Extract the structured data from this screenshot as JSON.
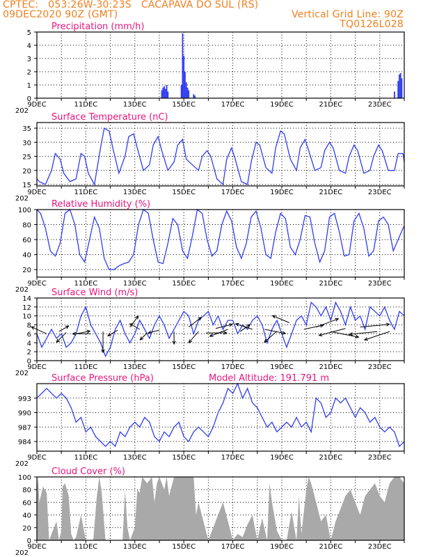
{
  "header": {
    "line1": "CPTEC:   053:26W-30:23S   CACAPAVA DO SUL (RS)",
    "line2_left": "09DEC2020 90Z (GMT)",
    "line2_right": "Vertical Grid Line: 90Z",
    "line3_right": "TQ0126L028"
  },
  "colors": {
    "header": "#f07f1e",
    "title": "#e8157d",
    "line": "#2e3cf0",
    "cloud": "#a9a9a9",
    "arrow": "#000000"
  },
  "x_labels": [
    "9DEC",
    "11DEC",
    "13DEC",
    "15DEC",
    "17DEC",
    "19DEC",
    "21DEC",
    "23DEC"
  ],
  "x_corner": "202",
  "model_altitude": "Model Altitude: 191.791 m",
  "chart_data": [
    {
      "type": "bar",
      "title": "Precipitation (mm/h)",
      "ylim": [
        0,
        5
      ],
      "yticks": [
        "0",
        "1",
        "2",
        "3",
        "4",
        "5"
      ],
      "x_days": [
        14.1,
        14.15,
        14.2,
        14.25,
        14.3,
        14.35,
        14.9,
        14.95,
        15.0,
        15.05,
        15.1,
        15.15,
        15.2,
        15.4,
        15.45,
        23.6,
        23.75,
        23.8,
        23.85,
        23.9
      ],
      "values": [
        0.6,
        0.8,
        0.9,
        0.7,
        1.0,
        0.5,
        1.0,
        4.9,
        3.2,
        2.0,
        1.2,
        0.8,
        0.6,
        0.3,
        0.2,
        0.5,
        1.3,
        1.8,
        1.9,
        1.5
      ]
    },
    {
      "type": "line",
      "title": "Surface Temperature (nC)",
      "ylim": [
        14.5,
        37
      ],
      "yticks": [
        "15",
        "20",
        "25",
        "30",
        "35"
      ],
      "x_days": [
        9.0,
        9.1,
        9.35,
        9.6,
        9.75,
        9.95,
        10.1,
        10.35,
        10.6,
        10.8,
        10.95,
        11.1,
        11.35,
        11.6,
        11.75,
        11.95,
        12.1,
        12.35,
        12.6,
        12.75,
        12.95,
        13.1,
        13.35,
        13.6,
        13.75,
        13.95,
        14.1,
        14.35,
        14.6,
        14.75,
        14.95,
        15.1,
        15.35,
        15.6,
        15.75,
        15.95,
        16.1,
        16.35,
        16.6,
        16.75,
        16.95,
        17.1,
        17.35,
        17.6,
        17.75,
        17.95,
        18.1,
        18.35,
        18.6,
        18.75,
        18.95,
        19.1,
        19.35,
        19.6,
        19.75,
        19.95,
        20.1,
        20.35,
        20.6,
        20.75,
        20.95,
        21.1,
        21.35,
        21.6,
        21.75,
        21.95,
        22.1,
        22.35,
        22.6,
        22.75,
        22.95,
        23.1,
        23.35,
        23.6,
        23.75,
        23.95,
        24.0
      ],
      "values": [
        17,
        16,
        15,
        20,
        26,
        24,
        19,
        16,
        17,
        26,
        25,
        19,
        15,
        28,
        35,
        34,
        28,
        19,
        25,
        32,
        33,
        28,
        20,
        22,
        29,
        32,
        27,
        20,
        23,
        29,
        31,
        24,
        22,
        20,
        25,
        27,
        25,
        17,
        15,
        24,
        28,
        24,
        16,
        15,
        23,
        30,
        29,
        21,
        19,
        28,
        34,
        33,
        24,
        20,
        28,
        31,
        27,
        20,
        21,
        27,
        30,
        28,
        20,
        19,
        25,
        29,
        27,
        19,
        20,
        25,
        29,
        27,
        20,
        20,
        26,
        26,
        23
      ]
    },
    {
      "type": "line",
      "title": "Relative Humidity (%)",
      "ylim": [
        10,
        100
      ],
      "yticks": [
        "20",
        "40",
        "60",
        "80",
        "100"
      ],
      "x_days": [
        9.0,
        9.15,
        9.35,
        9.55,
        9.75,
        9.95,
        10.15,
        10.35,
        10.55,
        10.75,
        10.95,
        11.15,
        11.35,
        11.55,
        11.75,
        11.95,
        12.15,
        12.35,
        12.55,
        12.75,
        12.95,
        13.15,
        13.35,
        13.55,
        13.75,
        13.95,
        14.15,
        14.35,
        14.55,
        14.75,
        14.95,
        15.15,
        15.35,
        15.55,
        15.75,
        15.95,
        16.15,
        16.35,
        16.55,
        16.75,
        16.95,
        17.15,
        17.35,
        17.55,
        17.75,
        17.95,
        18.15,
        18.35,
        18.55,
        18.75,
        18.95,
        19.15,
        19.35,
        19.55,
        19.75,
        19.95,
        20.15,
        20.35,
        20.55,
        20.75,
        20.95,
        21.15,
        21.35,
        21.55,
        21.75,
        21.95,
        22.15,
        22.35,
        22.55,
        22.75,
        22.95,
        23.15,
        23.35,
        23.55,
        23.75,
        23.95,
        24.0
      ],
      "values": [
        100,
        95,
        75,
        45,
        38,
        55,
        95,
        100,
        80,
        40,
        30,
        60,
        90,
        75,
        35,
        20,
        20,
        25,
        28,
        30,
        40,
        80,
        100,
        95,
        60,
        30,
        28,
        55,
        88,
        80,
        45,
        35,
        65,
        100,
        95,
        60,
        38,
        45,
        80,
        98,
        85,
        50,
        35,
        55,
        90,
        98,
        75,
        40,
        35,
        70,
        95,
        88,
        50,
        40,
        60,
        92,
        90,
        55,
        30,
        45,
        90,
        95,
        70,
        38,
        40,
        85,
        95,
        75,
        38,
        45,
        85,
        90,
        80,
        45,
        60,
        75,
        78
      ]
    },
    {
      "type": "line",
      "title": "Surface Wind (m/s)",
      "ylim": [
        0,
        14
      ],
      "yticks": [
        "0",
        "2",
        "4",
        "6",
        "8",
        "10",
        "12",
        "14"
      ],
      "x_days": [
        9.0,
        9.2,
        9.4,
        9.6,
        9.8,
        10.0,
        10.2,
        10.4,
        10.6,
        10.8,
        11.0,
        11.2,
        11.4,
        11.6,
        11.8,
        12.0,
        12.2,
        12.4,
        12.6,
        12.8,
        13.0,
        13.2,
        13.4,
        13.6,
        13.8,
        14.0,
        14.2,
        14.4,
        14.6,
        14.8,
        15.0,
        15.2,
        15.4,
        15.6,
        15.8,
        16.0,
        16.2,
        16.4,
        16.6,
        16.8,
        17.0,
        17.2,
        17.4,
        17.6,
        17.8,
        18.0,
        18.2,
        18.4,
        18.6,
        18.8,
        19.0,
        19.2,
        19.4,
        19.6,
        19.8,
        20.0,
        20.2,
        20.4,
        20.6,
        20.8,
        21.0,
        21.2,
        21.4,
        21.6,
        21.8,
        22.0,
        22.2,
        22.4,
        22.6,
        22.8,
        23.0,
        23.2,
        23.4,
        23.6,
        23.8,
        24.0
      ],
      "values": [
        6,
        3,
        5,
        7,
        5,
        6,
        3,
        4,
        6,
        10,
        12,
        8,
        6,
        4,
        1,
        3,
        7,
        9,
        6,
        4,
        6,
        9,
        7,
        5,
        8,
        10,
        8,
        5,
        7,
        9,
        11,
        10,
        6,
        9,
        10,
        11,
        8,
        10,
        7,
        9,
        9,
        6,
        8,
        7,
        9,
        10,
        8,
        4,
        7,
        9,
        6,
        3,
        6,
        9,
        10,
        8,
        13,
        12,
        10,
        12,
        9,
        13,
        11,
        8,
        12,
        9,
        10,
        7,
        12,
        11,
        10,
        12,
        9,
        7,
        11,
        10
      ]
    },
    {
      "type": "line",
      "title": "Surface Pressure (hPa)",
      "ylim": [
        982,
        996
      ],
      "yticks": [
        "984",
        "987",
        "990",
        "993"
      ],
      "x_days": [
        9.0,
        9.2,
        9.4,
        9.6,
        9.8,
        10.0,
        10.2,
        10.4,
        10.6,
        10.8,
        11.0,
        11.2,
        11.4,
        11.6,
        11.8,
        12.0,
        12.2,
        12.4,
        12.6,
        12.8,
        13.0,
        13.2,
        13.4,
        13.6,
        13.8,
        14.0,
        14.2,
        14.4,
        14.6,
        14.8,
        15.0,
        15.2,
        15.4,
        15.6,
        15.8,
        16.0,
        16.2,
        16.4,
        16.6,
        16.8,
        17.0,
        17.2,
        17.4,
        17.6,
        17.8,
        18.0,
        18.2,
        18.4,
        18.6,
        18.8,
        19.0,
        19.2,
        19.4,
        19.6,
        19.8,
        20.0,
        20.2,
        20.4,
        20.6,
        20.8,
        21.0,
        21.2,
        21.4,
        21.6,
        21.8,
        22.0,
        22.2,
        22.4,
        22.6,
        22.8,
        23.0,
        23.2,
        23.4,
        23.6,
        23.8,
        24.0
      ],
      "values": [
        993,
        994,
        995,
        994,
        993,
        994,
        993,
        991,
        988,
        989,
        986,
        987,
        985,
        984,
        983,
        984,
        983,
        986,
        985,
        987,
        988,
        987,
        989,
        988,
        985,
        984,
        986,
        985,
        987,
        988,
        985,
        984,
        986,
        987,
        986,
        985,
        987,
        990,
        992,
        995,
        994,
        996,
        993,
        995,
        992,
        991,
        989,
        987,
        988,
        986,
        987,
        988,
        987,
        989,
        987,
        988,
        986,
        993,
        992,
        989,
        990,
        993,
        992,
        993,
        991,
        989,
        991,
        990,
        988,
        989,
        987,
        986,
        987,
        986,
        983,
        984
      ]
    },
    {
      "type": "area",
      "title": "Cloud Cover (%)",
      "ylim": [
        0,
        100
      ],
      "yticks": [
        "0",
        "20",
        "40",
        "60",
        "80",
        "100"
      ],
      "x_days": [
        9.0,
        9.05,
        9.1,
        9.25,
        9.4,
        9.5,
        9.6,
        9.8,
        9.9,
        10.0,
        10.05,
        10.15,
        10.3,
        10.4,
        10.5,
        10.6,
        10.8,
        11.0,
        11.3,
        11.45,
        11.55,
        11.65,
        11.8,
        12.0,
        12.2,
        12.5,
        12.6,
        12.7,
        12.8,
        13.0,
        13.1,
        13.2,
        13.3,
        13.5,
        13.7,
        13.8,
        13.9,
        14.0,
        14.2,
        14.3,
        14.4,
        14.6,
        14.8,
        15.0,
        15.2,
        15.4,
        15.5,
        15.6,
        15.8,
        16.0,
        16.2,
        16.4,
        16.6,
        16.8,
        17.0,
        17.2,
        17.4,
        17.6,
        17.8,
        18.0,
        18.2,
        18.4,
        18.5,
        18.6,
        18.8,
        19.0,
        19.2,
        19.4,
        19.6,
        19.7,
        19.8,
        20.0,
        20.1,
        20.2,
        20.4,
        20.6,
        20.8,
        21.0,
        21.2,
        21.4,
        21.6,
        21.8,
        22.0,
        22.2,
        22.4,
        22.6,
        22.8,
        23.0,
        23.2,
        23.4,
        23.6,
        23.8,
        24.0
      ],
      "values": [
        80,
        100,
        60,
        85,
        75,
        0,
        10,
        30,
        0,
        15,
        85,
        90,
        70,
        10,
        0,
        5,
        40,
        0,
        0,
        70,
        100,
        75,
        0,
        0,
        0,
        0,
        80,
        20,
        0,
        20,
        80,
        75,
        100,
        90,
        100,
        60,
        90,
        100,
        80,
        100,
        70,
        100,
        100,
        100,
        100,
        100,
        40,
        60,
        30,
        0,
        20,
        40,
        60,
        30,
        0,
        10,
        5,
        25,
        40,
        0,
        35,
        0,
        90,
        60,
        15,
        0,
        0,
        45,
        0,
        70,
        10,
        80,
        100,
        90,
        60,
        30,
        40,
        0,
        30,
        50,
        70,
        80,
        60,
        40,
        70,
        80,
        90,
        70,
        60,
        90,
        100,
        100,
        90
      ]
    }
  ]
}
